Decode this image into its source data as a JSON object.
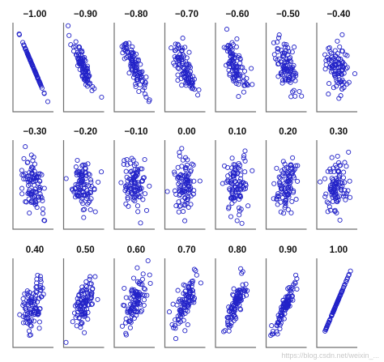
{
  "watermark": "https://blog.csdn.net/weixin_...",
  "colors": {
    "points": "#2323c8",
    "axis": "#6f6f6f",
    "title": "#111111"
  },
  "chart_data": {
    "type": "scatter",
    "layout_grid": "3 rows x 7 columns of small scatter panels",
    "grid": false,
    "legend": "none",
    "panels": [
      {
        "title": "−1.00",
        "r": -1.0
      },
      {
        "title": "−0.90",
        "r": -0.9
      },
      {
        "title": "−0.80",
        "r": -0.8
      },
      {
        "title": "−0.70",
        "r": -0.7
      },
      {
        "title": "−0.60",
        "r": -0.6
      },
      {
        "title": "−0.50",
        "r": -0.5
      },
      {
        "title": "−0.40",
        "r": -0.4
      },
      {
        "title": "−0.30",
        "r": -0.3
      },
      {
        "title": "−0.20",
        "r": -0.2
      },
      {
        "title": "−0.10",
        "r": -0.1
      },
      {
        "title": "0.00",
        "r": 0.0
      },
      {
        "title": "0.10",
        "r": 0.1
      },
      {
        "title": "0.20",
        "r": 0.2
      },
      {
        "title": "0.30",
        "r": 0.3
      },
      {
        "title": "0.40",
        "r": 0.4
      },
      {
        "title": "0.50",
        "r": 0.5
      },
      {
        "title": "0.60",
        "r": 0.6
      },
      {
        "title": "0.70",
        "r": 0.7
      },
      {
        "title": "0.80",
        "r": 0.8
      },
      {
        "title": "0.90",
        "r": 0.9
      },
      {
        "title": "1.00",
        "r": 1.0
      }
    ],
    "points_per_panel": 100,
    "xlim": [
      -3.2,
      3.2
    ],
    "ylim": [
      -3.2,
      3.2
    ]
  }
}
